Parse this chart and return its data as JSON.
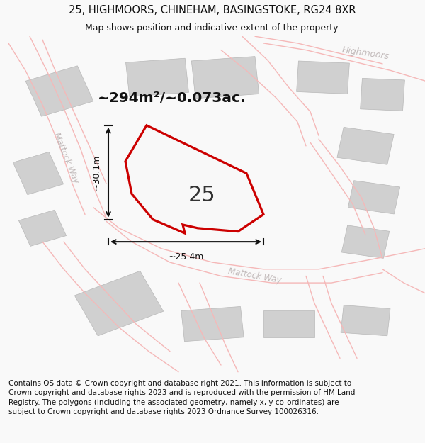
{
  "title_line1": "25, HIGHMOORS, CHINEHAM, BASINGSTOKE, RG24 8XR",
  "title_line2": "Map shows position and indicative extent of the property.",
  "footer_text": "Contains OS data © Crown copyright and database right 2021. This information is subject to Crown copyright and database rights 2023 and is reproduced with the permission of HM Land Registry. The polygons (including the associated geometry, namely x, y co-ordinates) are subject to Crown copyright and database rights 2023 Ordnance Survey 100026316.",
  "area_label": "~294m²/~0.073ac.",
  "width_label": "~25.4m",
  "height_label": "~30.1m",
  "plot_number": "25",
  "bg_color": "#f9f9f9",
  "map_bg": "#ffffff",
  "plot_fill": "#f0f0f0",
  "plot_outline": "#cc0000",
  "road_color": "#f5b8b8",
  "building_color": "#d0d0d0",
  "road_label_color": "#c0b8b8",
  "dim_color": "#111111",
  "title_color": "#111111",
  "figsize": [
    6.0,
    6.25
  ],
  "dpi": 100
}
